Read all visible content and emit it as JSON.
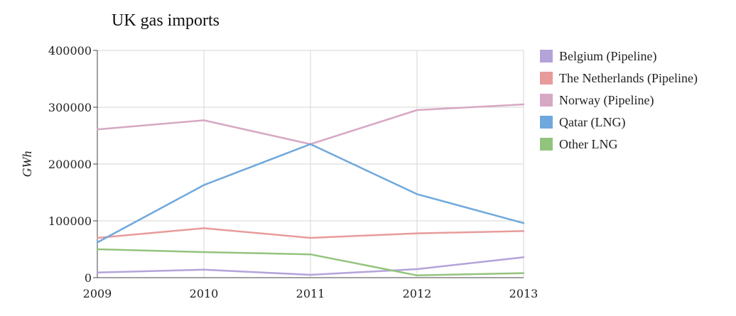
{
  "chart_data": {
    "type": "line",
    "title": "UK gas imports",
    "xlabel": "",
    "ylabel": "GWh",
    "x": [
      2009,
      2010,
      2011,
      2012,
      2013
    ],
    "x_tick_labels": [
      "2009",
      "2010",
      "2011",
      "2012",
      "2013"
    ],
    "ylim": [
      0,
      400000
    ],
    "y_ticks": [
      0,
      100000,
      200000,
      300000,
      400000
    ],
    "y_tick_labels": [
      "0",
      "100000",
      "200000",
      "300000",
      "400000"
    ],
    "grid": true,
    "legend_position": "right",
    "series": [
      {
        "name": "Belgium (Pipeline)",
        "color": "#b3a3d9",
        "values": [
          9000,
          14000,
          5000,
          15000,
          36000
        ]
      },
      {
        "name": "The Netherlands (Pipeline)",
        "color": "#e89b9b",
        "values": [
          70000,
          87000,
          70000,
          78000,
          82000
        ]
      },
      {
        "name": "Norway (Pipeline)",
        "color": "#d6a8c4",
        "values": [
          261000,
          277000,
          235000,
          295000,
          305000
        ]
      },
      {
        "name": "Qatar (LNG)",
        "color": "#6fa8dc",
        "values": [
          62000,
          163000,
          235000,
          147000,
          96000
        ]
      },
      {
        "name": "Other LNG",
        "color": "#93c47d",
        "values": [
          50000,
          45000,
          41000,
          4000,
          8000
        ]
      }
    ]
  }
}
